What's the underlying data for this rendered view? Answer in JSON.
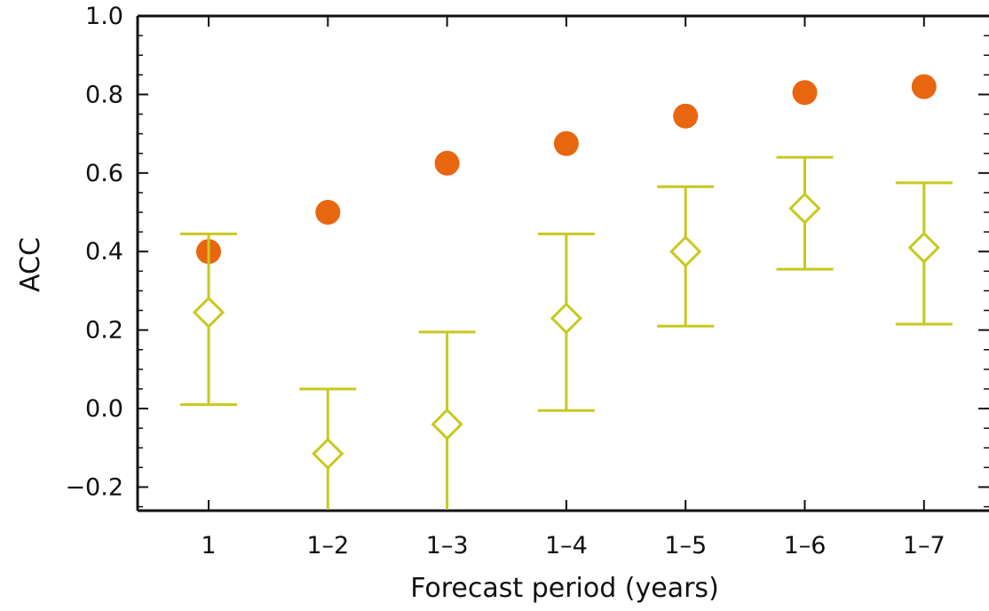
{
  "chart_data": {
    "type": "scatter",
    "xlabel": "Forecast period (years)",
    "ylabel": "ACC",
    "categories": [
      "1",
      "1–2",
      "1–3",
      "1–4",
      "1–5",
      "1–6",
      "1–7"
    ],
    "ylim": [
      -0.26,
      1.0
    ],
    "yticks": [
      -0.2,
      0.0,
      0.2,
      0.4,
      0.6,
      0.8,
      1.0
    ],
    "ytick_labels": [
      "−0.2",
      "0.0",
      "0.2",
      "0.4",
      "0.6",
      "0.8",
      "1.0"
    ],
    "grid": false,
    "series": [
      {
        "marker": "circle",
        "color": "#e8660f",
        "values": [
          0.4,
          0.5,
          0.625,
          0.675,
          0.745,
          0.805,
          0.82
        ]
      },
      {
        "marker": "diamond-open",
        "color": "#c8c81e",
        "values": [
          0.245,
          -0.115,
          -0.04,
          0.23,
          0.4,
          0.51,
          0.41
        ],
        "error_low": [
          0.01,
          -0.26,
          -0.26,
          -0.005,
          0.21,
          0.355,
          0.215
        ],
        "error_high": [
          0.445,
          0.05,
          0.195,
          0.445,
          0.565,
          0.64,
          0.575
        ]
      }
    ]
  }
}
